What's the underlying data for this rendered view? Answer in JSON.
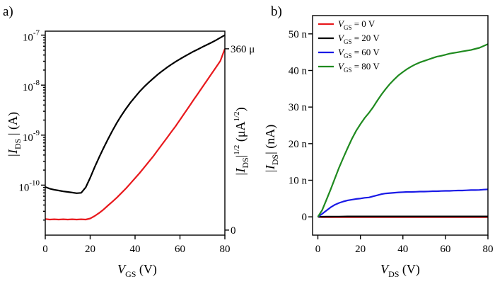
{
  "chart_data": [
    {
      "type": "line",
      "panel_label": "a)",
      "x": [
        0,
        2,
        4,
        6,
        8,
        10,
        12,
        14,
        16,
        18,
        20,
        22,
        24,
        26,
        28,
        30,
        32,
        34,
        36,
        38,
        40,
        42,
        44,
        46,
        48,
        50,
        52,
        54,
        56,
        58,
        60,
        62,
        64,
        66,
        68,
        70,
        72,
        74,
        76,
        78,
        80
      ],
      "xlim": [
        0,
        80
      ],
      "xticks": [
        0,
        20,
        40,
        60,
        80
      ],
      "xlabel": {
        "main": "V",
        "sub": "GS",
        "unit": " (V)"
      },
      "left_axis": {
        "scale": "log",
        "ylim": [
          1e-11,
          1.2e-07
        ],
        "tick_values": [
          1e-10,
          1e-09,
          1e-08,
          1e-07
        ],
        "tick_labels": [
          {
            "base": "10",
            "exp": "-10"
          },
          {
            "base": "10",
            "exp": "-9"
          },
          {
            "base": "10",
            "exp": "-8"
          },
          {
            "base": "10",
            "exp": "-7"
          }
        ],
        "label": {
          "pre": "|I",
          "sub": "DS",
          "post": " | (A)"
        }
      },
      "right_axis": {
        "scale": "linear",
        "ylim": [
          -10,
          395
        ],
        "tick_values": [
          0,
          360
        ],
        "tick_labels": [
          "0",
          "360 μ"
        ],
        "label": {
          "pre": "|I",
          "sub": "DS",
          "mid": "|",
          "sup1": "1/2",
          "paren": " (μA",
          "sup2": "1/2",
          "close": ")"
        }
      },
      "series": [
        {
          "name": "|I_DS| (log, left axis)",
          "color": "#000000",
          "axis": "left",
          "values": [
            9.2e-11,
            8.5e-11,
            8.1e-11,
            7.8e-11,
            7.5e-11,
            7.3e-11,
            7.1e-11,
            6.9e-11,
            7e-11,
            9e-11,
            1.4e-10,
            2.3e-10,
            3.6e-10,
            5.6e-10,
            8.4e-10,
            1.25e-09,
            1.8e-09,
            2.5e-09,
            3.4e-09,
            4.5e-09,
            5.8e-09,
            7.4e-09,
            9.2e-09,
            1.12e-08,
            1.35e-08,
            1.62e-08,
            1.9e-08,
            2.22e-08,
            2.56e-08,
            2.93e-08,
            3.32e-08,
            3.75e-08,
            4.2e-08,
            4.7e-08,
            5.2e-08,
            5.8e-08,
            6.4e-08,
            7.1e-08,
            7.9e-08,
            8.9e-08,
            1e-07
          ]
        },
        {
          "name": "|I_DS|^1/2 (linear, right axis)",
          "color": "#e8191d",
          "axis": "right",
          "values": [
            22,
            21,
            21.5,
            21,
            21.5,
            21,
            21.5,
            21,
            21.5,
            21,
            23,
            28,
            34,
            41,
            49,
            57,
            65,
            74,
            83,
            93,
            103,
            113,
            124,
            135,
            146,
            158,
            170,
            182,
            194,
            206,
            219,
            232,
            245,
            258,
            271,
            284,
            297,
            310,
            323,
            336,
            360
          ]
        }
      ]
    },
    {
      "type": "line",
      "panel_label": "b)",
      "x": [
        0,
        2,
        4,
        6,
        8,
        10,
        12,
        14,
        16,
        18,
        20,
        22,
        24,
        26,
        28,
        30,
        32,
        34,
        36,
        38,
        40,
        42,
        44,
        46,
        48,
        50,
        52,
        54,
        56,
        58,
        60,
        62,
        64,
        66,
        68,
        70,
        72,
        74,
        76,
        78,
        80
      ],
      "xlim": [
        -2.5,
        80
      ],
      "xticks": [
        0,
        20,
        40,
        60,
        80
      ],
      "xlabel": {
        "main": "V",
        "sub": "DS",
        "unit": " (V)"
      },
      "ylim": [
        -5,
        55
      ],
      "yticks": [
        0,
        10,
        20,
        30,
        40,
        50
      ],
      "ytick_labels": [
        "0",
        "10 n",
        "20 n",
        "30 n",
        "40 n",
        "50 n"
      ],
      "ylabel": {
        "pre": "|I",
        "sub": "DS",
        "post": "| (nA)"
      },
      "legend": {
        "placement": "top-left",
        "entries": [
          {
            "pre": "V",
            "sub": "GS",
            "post": " = 0 V",
            "color": "#e8191d"
          },
          {
            "pre": "V",
            "sub": "GS",
            "post": " = 20 V",
            "color": "#000000"
          },
          {
            "pre": "V",
            "sub": "GS",
            "post": " = 60 V",
            "color": "#1a1ae6"
          },
          {
            "pre": "V",
            "sub": "GS",
            "post": " = 80 V",
            "color": "#1f8a1f"
          }
        ]
      },
      "series": [
        {
          "name": "V_GS = 0 V",
          "color": "#e8191d",
          "values": [
            0,
            -0.1,
            -0.1,
            -0.1,
            -0.1,
            -0.1,
            -0.1,
            -0.1,
            -0.1,
            -0.1,
            -0.1,
            -0.1,
            -0.1,
            -0.1,
            -0.1,
            -0.1,
            -0.1,
            -0.1,
            -0.1,
            -0.1,
            -0.1,
            -0.1,
            -0.1,
            -0.1,
            -0.1,
            -0.1,
            -0.1,
            -0.1,
            -0.1,
            -0.1,
            -0.1,
            -0.1,
            -0.1,
            -0.1,
            -0.1,
            -0.1,
            -0.1,
            -0.1,
            -0.1,
            -0.1,
            -0.1
          ]
        },
        {
          "name": "V_GS = 20 V",
          "color": "#000000",
          "values": [
            0,
            0.03,
            0.05,
            0.06,
            0.07,
            0.08,
            0.09,
            0.1,
            0.1,
            0.1,
            0.1,
            0.1,
            0.1,
            0.1,
            0.1,
            0.1,
            0.1,
            0.1,
            0.1,
            0.1,
            0.1,
            0.1,
            0.1,
            0.1,
            0.1,
            0.1,
            0.1,
            0.1,
            0.1,
            0.1,
            0.1,
            0.1,
            0.1,
            0.1,
            0.1,
            0.1,
            0.1,
            0.1,
            0.1,
            0.1,
            0.1
          ]
        },
        {
          "name": "V_GS = 60 V",
          "color": "#1a1ae6",
          "values": [
            0,
            0.8,
            1.7,
            2.6,
            3.3,
            3.8,
            4.2,
            4.5,
            4.7,
            4.9,
            5.0,
            5.2,
            5.3,
            5.6,
            5.9,
            6.2,
            6.4,
            6.5,
            6.6,
            6.7,
            6.75,
            6.8,
            6.8,
            6.85,
            6.9,
            6.9,
            6.95,
            7.0,
            7.0,
            7.05,
            7.1,
            7.1,
            7.15,
            7.2,
            7.2,
            7.25,
            7.3,
            7.3,
            7.35,
            7.45,
            7.5
          ]
        },
        {
          "name": "V_GS = 80 V",
          "color": "#1f8a1f",
          "values": [
            0,
            1.8,
            4.6,
            7.5,
            10.5,
            13.5,
            16.2,
            18.8,
            21.3,
            23.5,
            25.3,
            27.0,
            28.4,
            30.0,
            31.8,
            33.5,
            35.0,
            36.4,
            37.6,
            38.7,
            39.6,
            40.4,
            41.1,
            41.7,
            42.2,
            42.6,
            43.0,
            43.4,
            43.8,
            44.0,
            44.3,
            44.6,
            44.8,
            45.0,
            45.2,
            45.4,
            45.6,
            45.9,
            46.2,
            46.7,
            47.2
          ]
        }
      ]
    }
  ]
}
